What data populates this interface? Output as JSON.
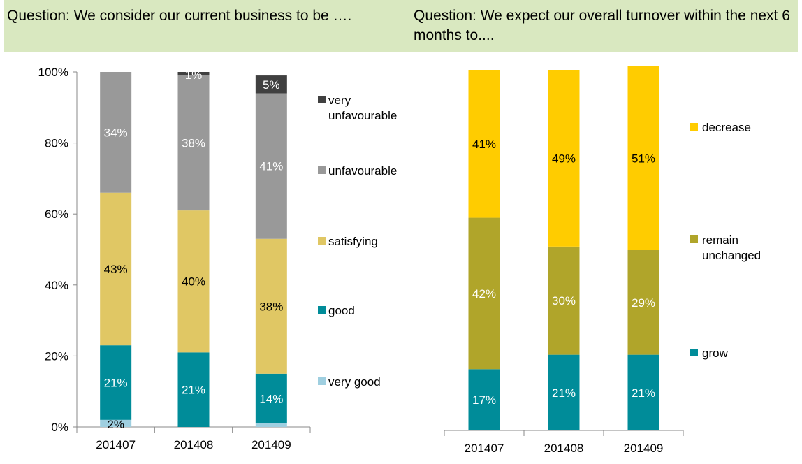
{
  "chart_data": [
    {
      "type": "bar",
      "stacked": true,
      "title": "Question: We consider our current business to be ….",
      "categories": [
        "201407",
        "201408",
        "201409"
      ],
      "ylim": [
        0,
        100
      ],
      "yticks": [
        "0%",
        "20%",
        "40%",
        "60%",
        "80%",
        "100%"
      ],
      "legend_position": "right",
      "series": [
        {
          "name": "very good",
          "color": "#9fcfe0",
          "values": [
            2,
            0,
            1
          ],
          "labels": [
            "2%",
            "",
            ""
          ]
        },
        {
          "name": "good",
          "color": "#008c99",
          "values": [
            21,
            21,
            14
          ],
          "labels": [
            "21%",
            "21%",
            "14%"
          ]
        },
        {
          "name": "satisfying",
          "color": "#e0c764",
          "values": [
            43,
            40,
            38
          ],
          "labels": [
            "43%",
            "40%",
            "38%"
          ]
        },
        {
          "name": "unfavourable",
          "color": "#999999",
          "values": [
            34,
            38,
            41
          ],
          "labels": [
            "34%",
            "38%",
            "41%"
          ]
        },
        {
          "name": "very unfavourable",
          "color": "#404040",
          "values": [
            0,
            1,
            5
          ],
          "labels": [
            "",
            "1%",
            "5%"
          ]
        }
      ]
    },
    {
      "type": "bar",
      "stacked": true,
      "title": "Question: We expect our overall turnover within the next 6 months to....",
      "categories": [
        "201407",
        "201408",
        "201409"
      ],
      "ylim": [
        0,
        100
      ],
      "legend_position": "right",
      "series": [
        {
          "name": "grow",
          "color": "#008c99",
          "values": [
            17,
            21,
            21
          ],
          "labels": [
            "17%",
            "21%",
            "21%"
          ]
        },
        {
          "name": "remain unchanged",
          "color": "#b0a52a",
          "values": [
            42,
            30,
            29
          ],
          "labels": [
            "42%",
            "30%",
            "29%"
          ]
        },
        {
          "name": "decrease",
          "color": "#ffcc00",
          "values": [
            41,
            49,
            51
          ],
          "labels": [
            "41%",
            "49%",
            "51%"
          ]
        }
      ]
    }
  ]
}
